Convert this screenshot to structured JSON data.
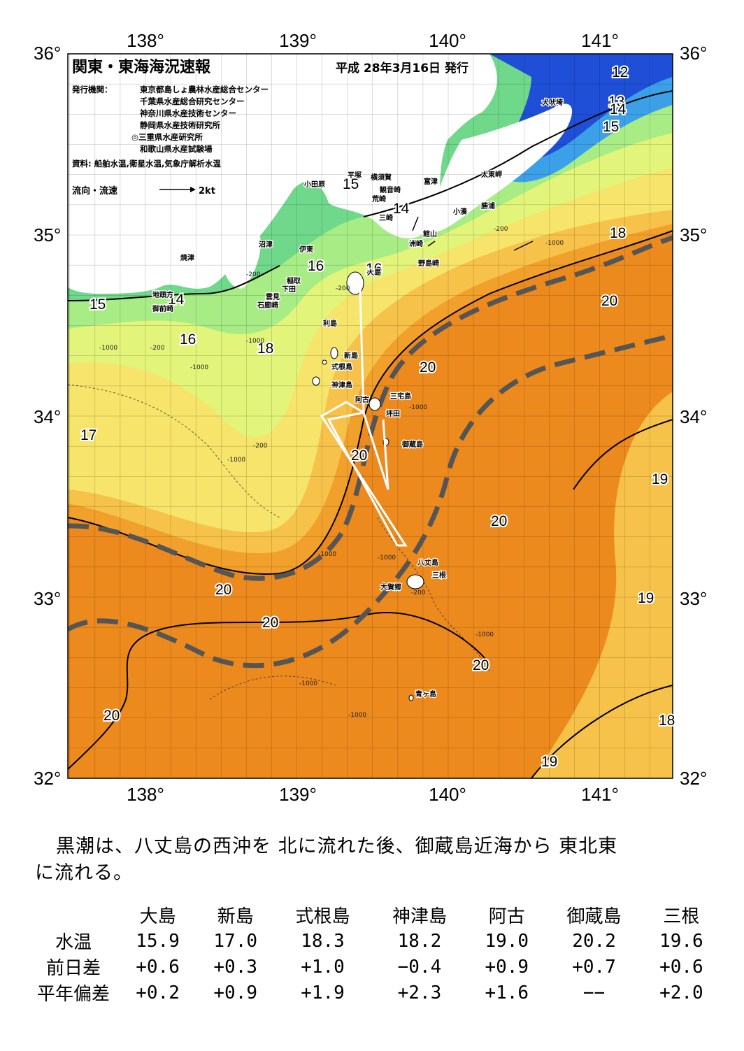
{
  "map": {
    "title": "関東・東海海況速報",
    "issued": "平成 28年3月16日 発行",
    "issuer_label": "発行機関：",
    "issuers": [
      "東京都島しょ農林水産総合センター",
      "千葉県水産総合研究センター",
      "神奈川県水産技術センター",
      "静岡県水産技術研究所",
      "◎三重県水産研究所",
      "和歌山県水産試験場"
    ],
    "source": "資料: 船舶水温,衛星水温,気象庁解析水温",
    "legend": {
      "label": "流向・流速",
      "scale": "2kt"
    },
    "lon_labels": [
      "138°",
      "139°",
      "140°",
      "141°"
    ],
    "lat_labels": [
      "36°",
      "35°",
      "34°",
      "33°",
      "32°"
    ],
    "isotherm_labels": [
      "12",
      "13",
      "14",
      "15",
      "15",
      "14",
      "15",
      "18",
      "16",
      "16",
      "15",
      "14",
      "16",
      "18",
      "20",
      "20",
      "20",
      "17",
      "19",
      "20",
      "20",
      "19",
      "20",
      "20",
      "20",
      "18",
      "19"
    ],
    "depth_labels": [
      "-200",
      "-1000",
      "-200",
      "-1000",
      "-200",
      "-1000",
      "-1000",
      "-200",
      "-1000",
      "-1000",
      "-1000",
      "-1000",
      "-1000",
      "-1000",
      "-200",
      "-1000",
      "-200"
    ],
    "places": [
      "犬吠埼",
      "太東岬",
      "勝浦",
      "小湊",
      "富津",
      "横須賀",
      "観音崎",
      "荒崎",
      "平塚",
      "小田原",
      "三崎",
      "館山",
      "洲崎",
      "野島崎",
      "大島",
      "沼津",
      "伊東",
      "焼津",
      "稲取",
      "下田",
      "雲見",
      "石廊崎",
      "地頭方",
      "御前崎",
      "利島",
      "新島",
      "式根島",
      "神津島",
      "阿古",
      "三宅島",
      "坪田",
      "御蔵島",
      "八丈島",
      "三根",
      "大賀郷",
      "青ヶ島"
    ],
    "colors": {
      "water_cold": "#1e4fd6",
      "water_15": "#6fd88a",
      "water_16": "#a8ec86",
      "water_17": "#e2f47a",
      "water_18": "#f7e46a",
      "water_19": "#f6c24a",
      "water_20": "#f2a02c",
      "water_warm": "#ec8a1e",
      "land": "#ffffff",
      "kuroshio_axis": "#555555",
      "ship_track": "#ffffff"
    }
  },
  "summary": {
    "line1": "黒潮は、八丈島の西沖を 北に流れた後、御蔵島近海から 東北東",
    "line2": "に流れる。"
  },
  "table": {
    "columns": [
      "大島",
      "新島",
      "式根島",
      "神津島",
      "阿古",
      "御蔵島",
      "三根"
    ],
    "rows": [
      {
        "label": "水温",
        "values": [
          "15.9",
          "17.0",
          "18.3",
          "18.2",
          "19.0",
          "20.2",
          "19.6"
        ]
      },
      {
        "label": "前日差",
        "values": [
          "+0.6",
          "+0.3",
          "+1.0",
          "−0.4",
          "+0.9",
          "+0.7",
          "+0.6"
        ]
      },
      {
        "label": "平年偏差",
        "values": [
          "+0.2",
          "+0.9",
          "+1.9",
          "+2.3",
          "+1.6",
          "−−",
          "+2.0"
        ]
      }
    ]
  }
}
